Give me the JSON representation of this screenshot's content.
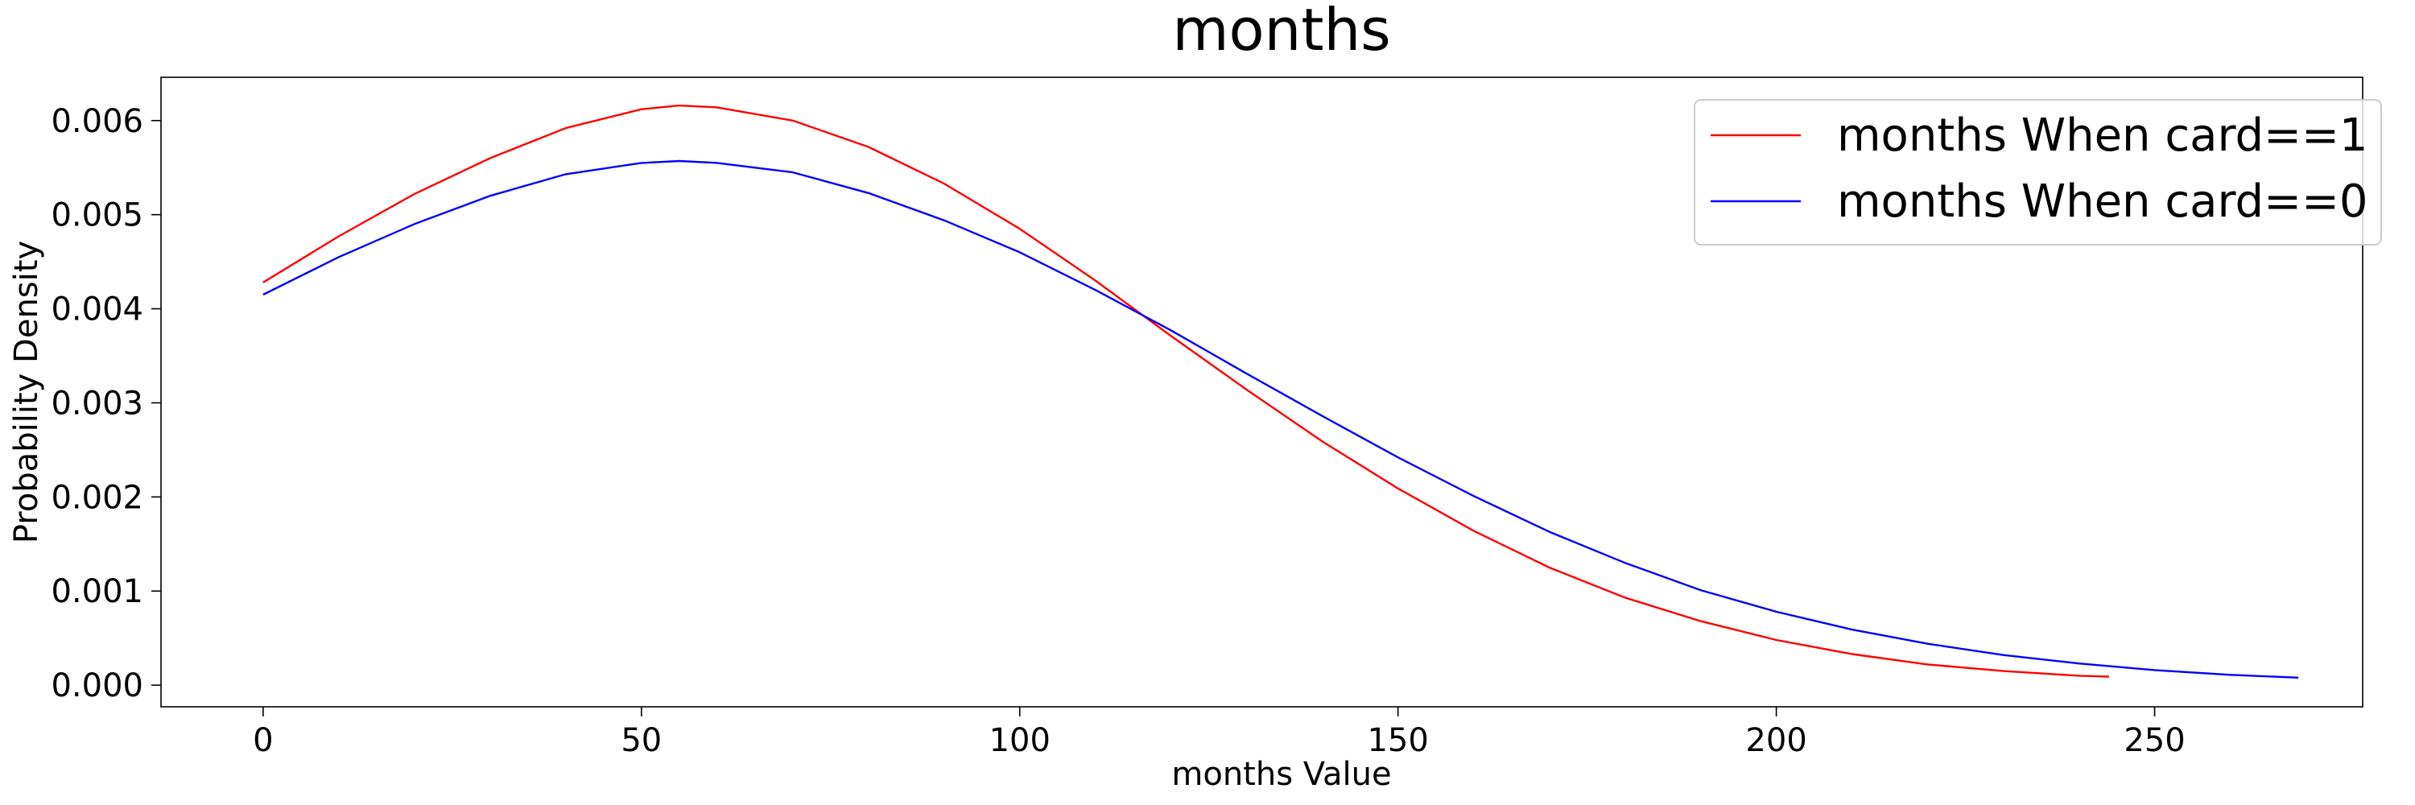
{
  "chart_data": {
    "type": "line",
    "title": "months",
    "xlabel": "months Value",
    "ylabel": "Probability Density",
    "xlim": [
      -13.5,
      277.5
    ],
    "ylim": [
      -0.00023,
      0.00646
    ],
    "xticks": [
      0,
      50,
      100,
      150,
      200,
      250
    ],
    "yticks": [
      0.0,
      0.001,
      0.002,
      0.003,
      0.004,
      0.005,
      0.006
    ],
    "ytick_labels": [
      "0.000",
      "0.001",
      "0.002",
      "0.003",
      "0.004",
      "0.005",
      "0.006"
    ],
    "grid": false,
    "legend_position": "top-right",
    "series": [
      {
        "name": "months When card==1",
        "color": "#ff0000",
        "x": [
          0,
          10,
          20,
          30,
          40,
          50,
          55,
          60,
          70,
          80,
          90,
          100,
          110,
          120,
          130,
          140,
          150,
          160,
          170,
          180,
          190,
          200,
          210,
          220,
          230,
          240,
          244
        ],
        "y": [
          0.00428,
          0.00477,
          0.00522,
          0.0056,
          0.00592,
          0.00612,
          0.00616,
          0.00614,
          0.006,
          0.00572,
          0.00533,
          0.00485,
          0.0043,
          0.00371,
          0.00314,
          0.00259,
          0.00209,
          0.00164,
          0.00125,
          0.00093,
          0.00068,
          0.00048,
          0.00033,
          0.00022,
          0.00015,
          0.0001,
          9e-05
        ]
      },
      {
        "name": "months When card==0",
        "color": "#0000ff",
        "x": [
          0,
          10,
          20,
          30,
          40,
          50,
          55,
          60,
          70,
          80,
          90,
          100,
          110,
          120,
          130,
          140,
          150,
          160,
          170,
          180,
          190,
          200,
          210,
          220,
          230,
          240,
          250,
          260,
          269
        ],
        "y": [
          0.00415,
          0.00455,
          0.0049,
          0.0052,
          0.00543,
          0.00555,
          0.00557,
          0.00555,
          0.00545,
          0.00523,
          0.00494,
          0.0046,
          0.0042,
          0.00377,
          0.00331,
          0.00286,
          0.00242,
          0.00201,
          0.00163,
          0.0013,
          0.00101,
          0.00078,
          0.00059,
          0.00044,
          0.00032,
          0.00023,
          0.00016,
          0.00011,
          8e-05
        ]
      }
    ]
  }
}
